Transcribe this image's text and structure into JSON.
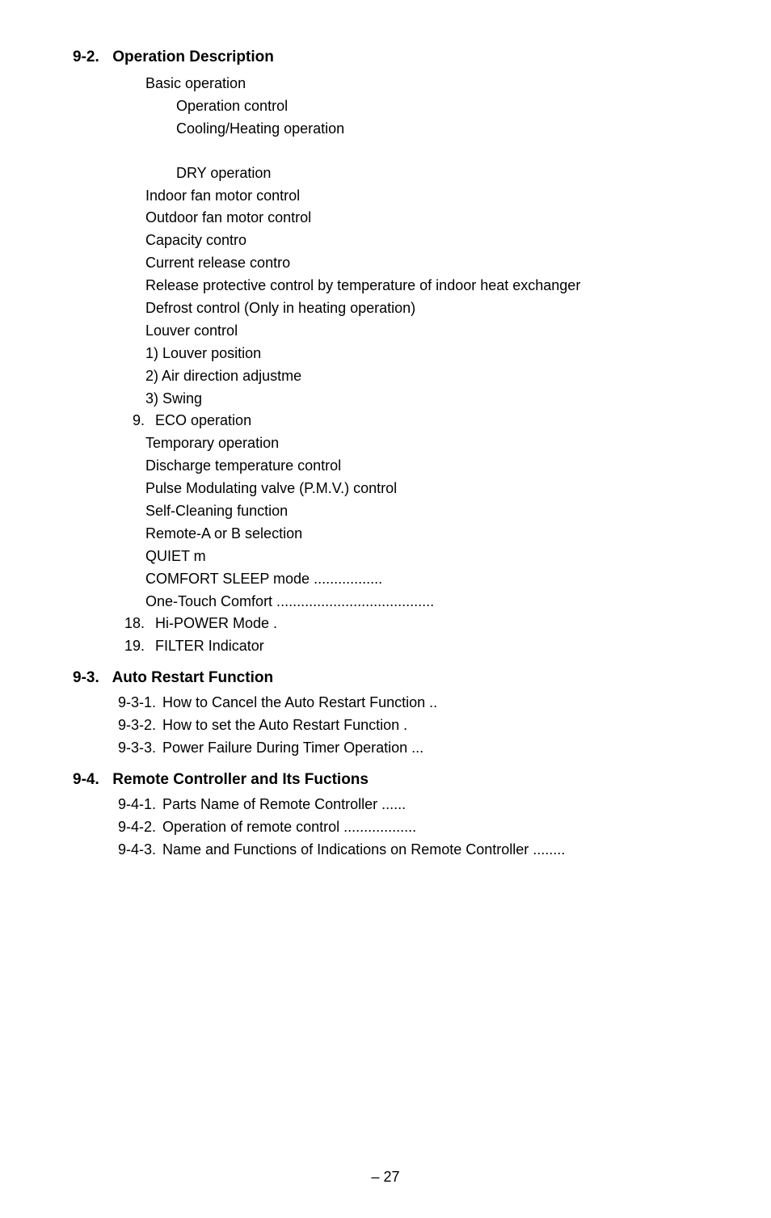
{
  "section92": {
    "num": "9-2.",
    "title": "Operation Description",
    "items": {
      "basic": "Basic operation",
      "op_control": "Operation control",
      "cool_heat": "Cooling/Heating operation",
      "dry": "DRY operation",
      "indoor_fan": "Indoor fan motor control",
      "outdoor_fan": "Outdoor fan motor control",
      "capacity": "Capacity contro",
      "current_release": "Current release contro",
      "release_protective": "Release protective control by temperature of indoor heat exchanger",
      "defrost": "Defrost control (Only in heating operation)",
      "louver": "Louver control",
      "louver1_n": "1)",
      "louver1": "Louver position",
      "louver2_n": "2)",
      "louver2": "Air direction adjustme",
      "louver3_n": "3)",
      "louver3": "Swing",
      "eco_n": "9.",
      "eco": "ECO operation",
      "temporary": "Temporary operation",
      "discharge": "Discharge temperature control",
      "pmv": "Pulse Modulating valve (P.M.V.) control",
      "selfclean": "Self-Cleaning function",
      "remoteab": "Remote-A or B selection",
      "quiet": "QUIET m",
      "comfort_sleep": "COMFORT SLEEP mode  .................",
      "one_touch": "One-Touch Comfort  .......................................",
      "hipower_n": "18.",
      "hipower": "Hi-POWER Mode  .",
      "filter_n": "19.",
      "filter": "FILTER Indicator"
    }
  },
  "section93": {
    "num": "9-3.",
    "title": "Auto Restart Function",
    "items": {
      "i1_n": "9-3-1.",
      "i1": "How to Cancel the Auto Restart Function  ..",
      "i2_n": "9-3-2.",
      "i2": "How to set the Auto Restart Function   .",
      "i3_n": "9-3-3.",
      "i3": "Power Failure During  Timer Operation   ..."
    }
  },
  "section94": {
    "num": "9-4.",
    "title": "Remote Controller and Its Fuctions",
    "items": {
      "i1_n": "9-4-1.",
      "i1": "Parts Name of Remote Controller  ......",
      "i2_n": "9-4-2.",
      "i2": "Operation of remote control  ..................",
      "i3_n": "9-4-3.",
      "i3": "Name and Functions of Indications on Remote Controller  ........"
    }
  },
  "page_num": "– 27"
}
